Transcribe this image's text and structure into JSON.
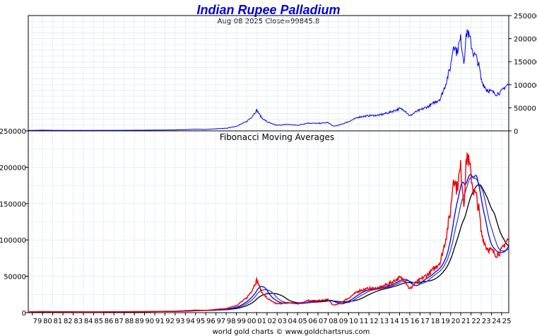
{
  "chart_data": [
    {
      "type": "line",
      "title": "Indian Rupee Palladium",
      "subtitle": "Aug-08  2025   Close=99845.8",
      "y_axis_side": "right",
      "ylim": [
        0,
        250000
      ],
      "y_ticks": [
        "250000",
        "200000",
        "150000",
        "100000",
        "50000",
        "0"
      ],
      "xlim": [
        1978.6,
        2025.7
      ],
      "grid": true,
      "colors": {
        "price": "#0000ee",
        "grid": "#d7e6f2",
        "title": "#0000dd"
      },
      "series": [
        {
          "x": [
            1978.6,
            1980,
            1981,
            1982,
            1985,
            1990,
            1993,
            1995,
            1996,
            1997,
            1998,
            1999,
            2000,
            2000.5,
            2001.0,
            2001.2,
            2001.5,
            2002,
            2002.5,
            2003,
            2004,
            2005,
            2006,
            2007,
            2008,
            2008.5,
            2009,
            2010,
            2011,
            2012,
            2013,
            2014,
            2015,
            2015.5,
            2016,
            2016.5,
            2017,
            2018,
            2019,
            2019.5,
            2020,
            2020.3,
            2020.6,
            2021,
            2021.3,
            2021.6,
            2022,
            2022.2,
            2022.5,
            2022.8,
            2023,
            2023.5,
            2024,
            2024.5,
            2025,
            2025.3,
            2025.6
          ],
          "values": [
            1000,
            1500,
            1200,
            1000,
            1000,
            1500,
            2000,
            3500,
            3000,
            4500,
            5500,
            10000,
            20000,
            30000,
            45000,
            38000,
            28000,
            20000,
            15000,
            12000,
            14000,
            12000,
            17000,
            16000,
            18000,
            10000,
            12000,
            20000,
            30000,
            33000,
            34000,
            40000,
            48000,
            45000,
            32000,
            40000,
            45000,
            55000,
            70000,
            100000,
            140000,
            190000,
            170000,
            200000,
            150000,
            220000,
            190000,
            170000,
            160000,
            140000,
            110000,
            90000,
            85000,
            80000,
            85000,
            95000,
            99846
          ]
        }
      ]
    },
    {
      "type": "line",
      "title": "Fibonacci Moving Averages",
      "y_axis_side": "left",
      "ylim": [
        0,
        250000
      ],
      "y_ticks": [
        "250000",
        "200000",
        "150000",
        "100000",
        "50000",
        "0"
      ],
      "xlim": [
        1978.6,
        2025.7
      ],
      "grid": true,
      "x_ticks": [
        "79",
        "80",
        "81",
        "82",
        "83",
        "84",
        "85",
        "86",
        "87",
        "88",
        "89",
        "90",
        "91",
        "92",
        "93",
        "94",
        "95",
        "96",
        "97",
        "98",
        "99",
        "00",
        "01",
        "02",
        "03",
        "04",
        "05",
        "06",
        "07",
        "08",
        "09",
        "10",
        "11",
        "12",
        "13",
        "14",
        "15",
        "16",
        "17",
        "18",
        "19",
        "20",
        "21",
        "22",
        "23",
        "24",
        "25"
      ],
      "colors": {
        "price": "#ee0000",
        "ma_fast": "#0000ee",
        "ma_mid": "#4444aa",
        "ma_slow": "#000000"
      }
    }
  ],
  "footer": "world gold charts © www.goldchartsrus.com"
}
